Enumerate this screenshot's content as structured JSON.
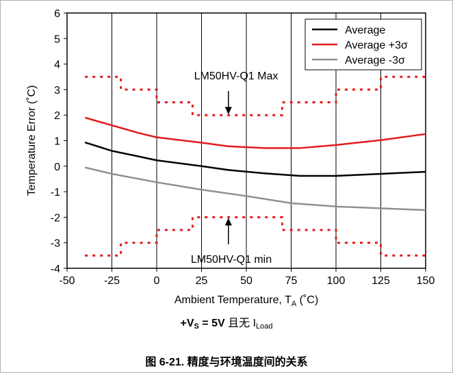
{
  "chart_data": {
    "type": "line",
    "xlabel_main": "Ambient Temperature, T",
    "xlabel_sub": "A",
    "xlabel_unit": " (˚C)",
    "ylabel": "Temperature Error (˚C)",
    "xlim": [
      -50,
      150
    ],
    "ylim": [
      -4,
      6
    ],
    "x_ticks": [
      "-50",
      "-25",
      "0",
      "25",
      "50",
      "75",
      "100",
      "125",
      "150"
    ],
    "y_ticks": [
      "-4",
      "-3",
      "-2",
      "-1",
      "0",
      "1",
      "2",
      "3",
      "4",
      "5",
      "6"
    ],
    "grid": "vertical",
    "legend_position": "top-right",
    "series": [
      {
        "name": "Average",
        "color": "#000000",
        "x": [
          -40,
          -25,
          -10,
          0,
          25,
          40,
          60,
          80,
          100,
          125,
          150
        ],
        "y": [
          0.93,
          0.6,
          0.38,
          0.23,
          0.0,
          -0.15,
          -0.28,
          -0.38,
          -0.38,
          -0.3,
          -0.22
        ]
      },
      {
        "name": "Average +3σ",
        "color": "#e31a1c",
        "x": [
          -40,
          -25,
          -10,
          0,
          25,
          40,
          60,
          80,
          100,
          125,
          150
        ],
        "y": [
          1.9,
          1.6,
          1.3,
          1.13,
          0.92,
          0.78,
          0.71,
          0.71,
          0.83,
          1.02,
          1.26
        ]
      },
      {
        "name": "Average -3σ",
        "color": "#909090",
        "x": [
          -40,
          -25,
          0,
          25,
          50,
          75,
          100,
          125,
          150
        ],
        "y": [
          -0.05,
          -0.3,
          -0.63,
          -0.92,
          -1.17,
          -1.45,
          -1.58,
          -1.65,
          -1.72
        ]
      }
    ],
    "limit_lines": [
      {
        "label": "LM50HV-Q1 Max",
        "color": "#e31a1c",
        "x": [
          -40,
          -20,
          -20,
          0,
          0,
          20,
          20,
          70,
          70,
          100,
          100,
          125,
          125,
          150
        ],
        "y": [
          3.5,
          3.5,
          3.0,
          3.0,
          2.5,
          2.5,
          2.0,
          2.0,
          2.5,
          2.5,
          3.0,
          3.0,
          3.5,
          3.5
        ]
      },
      {
        "label": "LM50HV-Q1 min",
        "color": "#e31a1c",
        "x": [
          -40,
          -20,
          -20,
          0,
          0,
          20,
          20,
          70,
          70,
          100,
          100,
          125,
          125,
          150
        ],
        "y": [
          -3.5,
          -3.5,
          -3.0,
          -3.0,
          -2.5,
          -2.5,
          -2.0,
          -2.0,
          -2.5,
          -2.5,
          -3.0,
          -3.0,
          -3.5,
          -3.5
        ]
      }
    ],
    "annotations": [
      {
        "text": "LM50HV-Q1 Max",
        "arrow_to": [
          40,
          2.0
        ],
        "direction": "down"
      },
      {
        "text": "LM50HV-Q1 min",
        "arrow_to": [
          40,
          -2.0
        ],
        "direction": "up"
      }
    ]
  },
  "condition": {
    "prefix": "+V",
    "sub_s": "S",
    "value": " = 5V",
    "cn_text": " 且无 I",
    "sub_load": "Load"
  },
  "caption": "图 6-21. 精度与环境温度间的关系"
}
